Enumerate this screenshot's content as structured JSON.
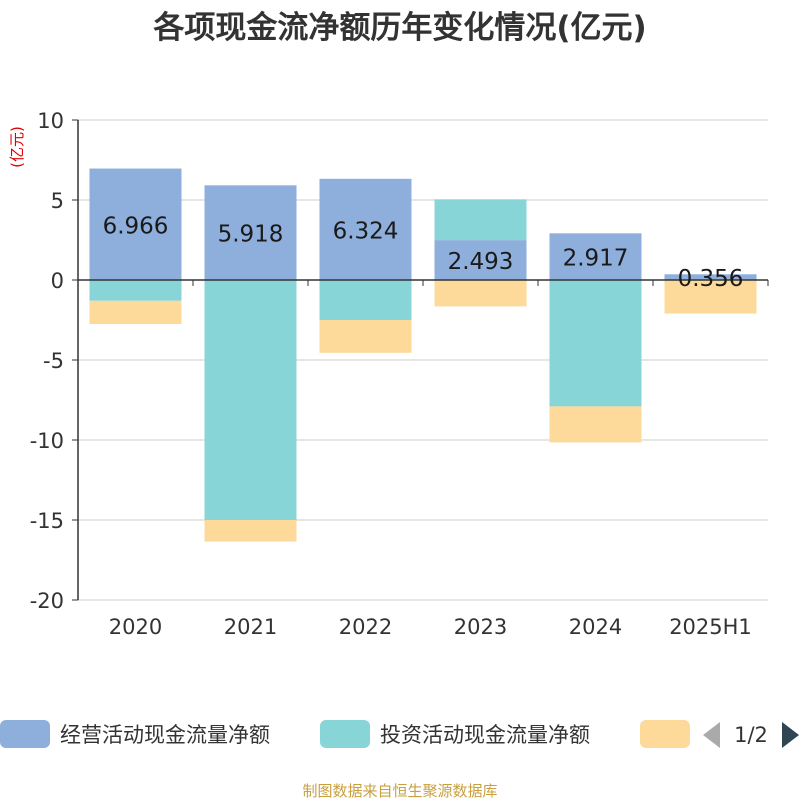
{
  "title": "各项现金流净额历年变化情况(亿元)",
  "unit_label": "(亿元)",
  "source": "制图数据来自恒生聚源数据库",
  "legend": {
    "pager": "1/2",
    "items": [
      {
        "label": "经营活动现金流量净额",
        "color": "#8eaedb"
      },
      {
        "label": "投资活动现金流量净额",
        "color": "#88d5d8"
      },
      {
        "label": "",
        "color": "#fdd99a"
      }
    ]
  },
  "chart_data": {
    "type": "bar",
    "stacked": true,
    "categories": [
      "2020",
      "2021",
      "2022",
      "2023",
      "2024",
      "2025H1"
    ],
    "ylim": [
      -20,
      10
    ],
    "yticks": [
      10,
      5,
      0,
      -5,
      -10,
      -15,
      -20
    ],
    "grid": true,
    "legend_position": "bottom",
    "series": [
      {
        "name": "经营活动现金流量净额",
        "color": "#8eaedb",
        "values": [
          6.966,
          5.918,
          6.324,
          2.493,
          2.917,
          0.356
        ],
        "labels": [
          "6.966",
          "5.918",
          "6.324",
          "2.493",
          "2.917",
          "0.356"
        ]
      },
      {
        "name": "投资活动现金流量净额",
        "color": "#88d5d8",
        "values": [
          -1.3,
          -15.0,
          -2.5,
          2.55,
          -7.9,
          0
        ]
      },
      {
        "color": "#fdd99a",
        "values": [
          -1.45,
          -1.35,
          -2.05,
          -1.65,
          -2.25,
          -2.1
        ]
      }
    ]
  }
}
